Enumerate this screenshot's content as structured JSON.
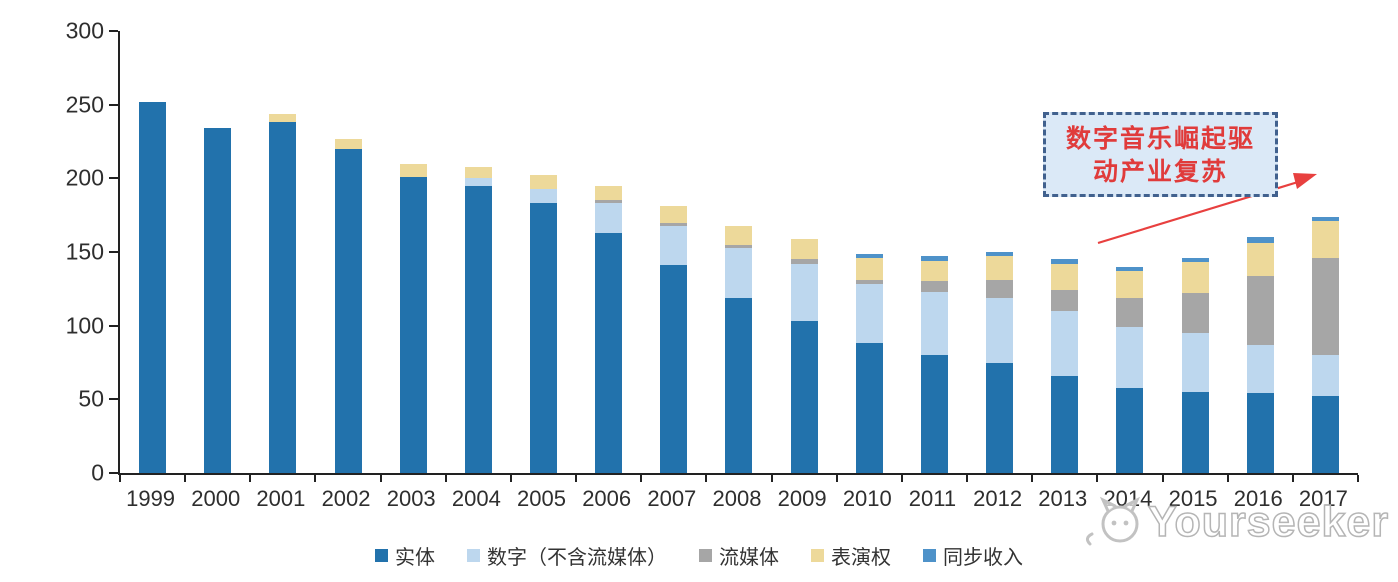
{
  "chart_data": {
    "type": "bar",
    "stacked": true,
    "title": "",
    "xlabel": "",
    "ylabel": "",
    "ylim": [
      0,
      300
    ],
    "yticks": [
      0,
      50,
      100,
      150,
      200,
      250,
      300
    ],
    "grid": false,
    "legend_position": "bottom",
    "categories": [
      "1999",
      "2000",
      "2001",
      "2002",
      "2003",
      "2004",
      "2005",
      "2006",
      "2007",
      "2008",
      "2009",
      "2010",
      "2011",
      "2012",
      "2013",
      "2014",
      "2015",
      "2016",
      "2017"
    ],
    "series": [
      {
        "key": "physical",
        "name": "实体",
        "color": "#2272AC",
        "values": [
          252,
          234,
          238,
          220,
          201,
          195,
          183,
          163,
          141,
          119,
          103,
          88,
          80,
          75,
          66,
          58,
          55,
          54,
          52
        ]
      },
      {
        "key": "digital",
        "name": "数字（不含流媒体）",
        "color": "#BDD7EE",
        "values": [
          0,
          0,
          0,
          0,
          0,
          5,
          10,
          20,
          27,
          34,
          39,
          40,
          43,
          44,
          44,
          41,
          40,
          33,
          28
        ]
      },
      {
        "key": "streaming",
        "name": "流媒体",
        "color": "#A6A6A6",
        "values": [
          0,
          0,
          0,
          0,
          0,
          0,
          0,
          2,
          2,
          2,
          3,
          3,
          7,
          12,
          14,
          20,
          27,
          47,
          66
        ]
      },
      {
        "key": "performance",
        "name": "表演权",
        "color": "#EDD99A",
        "values": [
          0,
          0,
          6,
          7,
          9,
          8,
          9,
          10,
          11,
          13,
          14,
          15,
          14,
          16,
          18,
          18,
          21,
          22,
          25
        ]
      },
      {
        "key": "sync",
        "name": "同步收入",
        "color": "#4E92C9",
        "values": [
          0,
          0,
          0,
          0,
          0,
          0,
          0,
          0,
          0,
          0,
          0,
          3,
          3,
          3,
          3,
          3,
          3,
          4,
          3
        ]
      }
    ]
  },
  "annotation": {
    "line1": "数字音乐崛起驱",
    "line2": "动产业复苏",
    "box_fill": "#dbe9f7",
    "box_border": "#41618e",
    "text_color": "#e03b3b",
    "arrow_color": "#e8403f"
  },
  "axis": {
    "line_color": "#222222",
    "label_color": "#2e2e2e"
  },
  "watermark": {
    "text": "Yourseeker"
  }
}
